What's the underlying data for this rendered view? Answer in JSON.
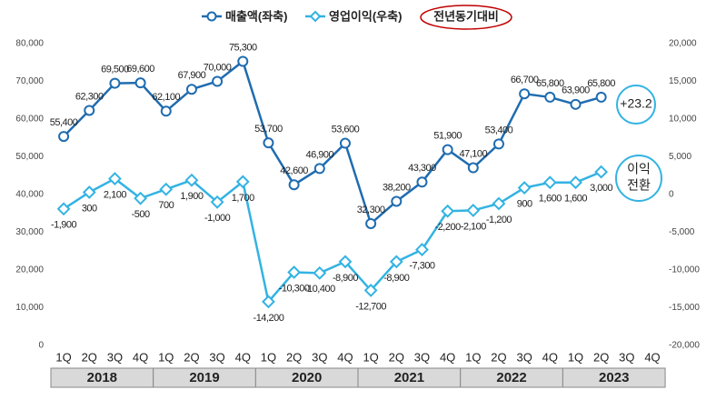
{
  "chart_data": {
    "type": "line",
    "categories": [
      "1Q",
      "2Q",
      "3Q",
      "4Q",
      "1Q",
      "2Q",
      "3Q",
      "4Q",
      "1Q",
      "2Q",
      "3Q",
      "4Q",
      "1Q",
      "2Q",
      "3Q",
      "4Q",
      "1Q",
      "2Q",
      "3Q",
      "4Q",
      "1Q",
      "2Q",
      "3Q",
      "4Q"
    ],
    "years": [
      "2018",
      "2019",
      "2020",
      "2021",
      "2022",
      "2023"
    ],
    "series": [
      {
        "name": "매출액(좌축)",
        "color": "#1f6cb0",
        "marker": "circle",
        "axis": "y",
        "values": [
          55400,
          62300,
          69500,
          69600,
          62100,
          67900,
          70000,
          75300,
          53700,
          42600,
          46900,
          53600,
          32300,
          38200,
          43300,
          51900,
          47100,
          53400,
          66700,
          65800,
          63900,
          65800,
          null,
          null
        ],
        "value_labels": [
          "55,400",
          "62,300",
          "69,500",
          "69,600",
          "62,100",
          "67,900",
          "70,000",
          "75,300",
          "53,700",
          "42,600",
          "46,900",
          "53,600",
          "32,300",
          "38,200",
          "43,300",
          "51,900",
          "47,100",
          "53,400",
          "66,700",
          "65,800",
          "63,900",
          "65,800",
          null,
          null
        ]
      },
      {
        "name": "영업이익(우축)",
        "color": "#33b3e3",
        "marker": "diamond",
        "axis": "y2",
        "values": [
          -1900,
          300,
          2100,
          -500,
          700,
          1900,
          -1000,
          1700,
          -14200,
          -10300,
          -10400,
          -8900,
          -12700,
          -8900,
          -7300,
          -2200,
          -2100,
          -1200,
          900,
          1600,
          1600,
          3000,
          null,
          null
        ],
        "value_labels": [
          "-1,900",
          "300",
          "2,100",
          "-500",
          "700",
          "1,900",
          "-1,000",
          "1,700",
          "-14,200",
          "-10,300",
          "-10,400",
          "-8,900",
          "-12,700",
          "-8,900",
          "-7,300",
          "-2,200",
          "-2,100",
          "-1,200",
          "900",
          "1,600",
          "1,600",
          "3,000",
          null,
          null
        ]
      }
    ],
    "ylim": [
      0,
      80000
    ],
    "yticks": [
      0,
      {
        "value": 10000,
        "label": "10,000"
      },
      {
        "value": 20000,
        "label": "20,000"
      },
      {
        "value": 30000,
        "label": "30,000"
      },
      {
        "value": 40000,
        "label": "40,000"
      },
      {
        "value": 50000,
        "label": "50,000"
      },
      {
        "value": 60000,
        "label": "60,000"
      },
      {
        "value": 70000,
        "label": "70,000"
      },
      {
        "value": 80000,
        "label": "80,000"
      }
    ],
    "y2lim": [
      -20000,
      20000
    ],
    "y2ticks": [
      {
        "value": -20000,
        "label": "-20,000"
      },
      {
        "value": -15000,
        "label": "-15,000"
      },
      {
        "value": -10000,
        "label": "-10,000"
      },
      {
        "value": -5000,
        "label": "-5,000"
      },
      0,
      {
        "value": 5000,
        "label": "5,000"
      },
      {
        "value": 10000,
        "label": "10,000"
      },
      {
        "value": 15000,
        "label": "15,000"
      },
      {
        "value": 20000,
        "label": "20,000"
      }
    ],
    "grid": false,
    "legend_note": "전년동기대비",
    "badges": [
      {
        "lines": [
          "+23.2"
        ]
      },
      {
        "lines": [
          "이익",
          "전환"
        ]
      }
    ]
  }
}
